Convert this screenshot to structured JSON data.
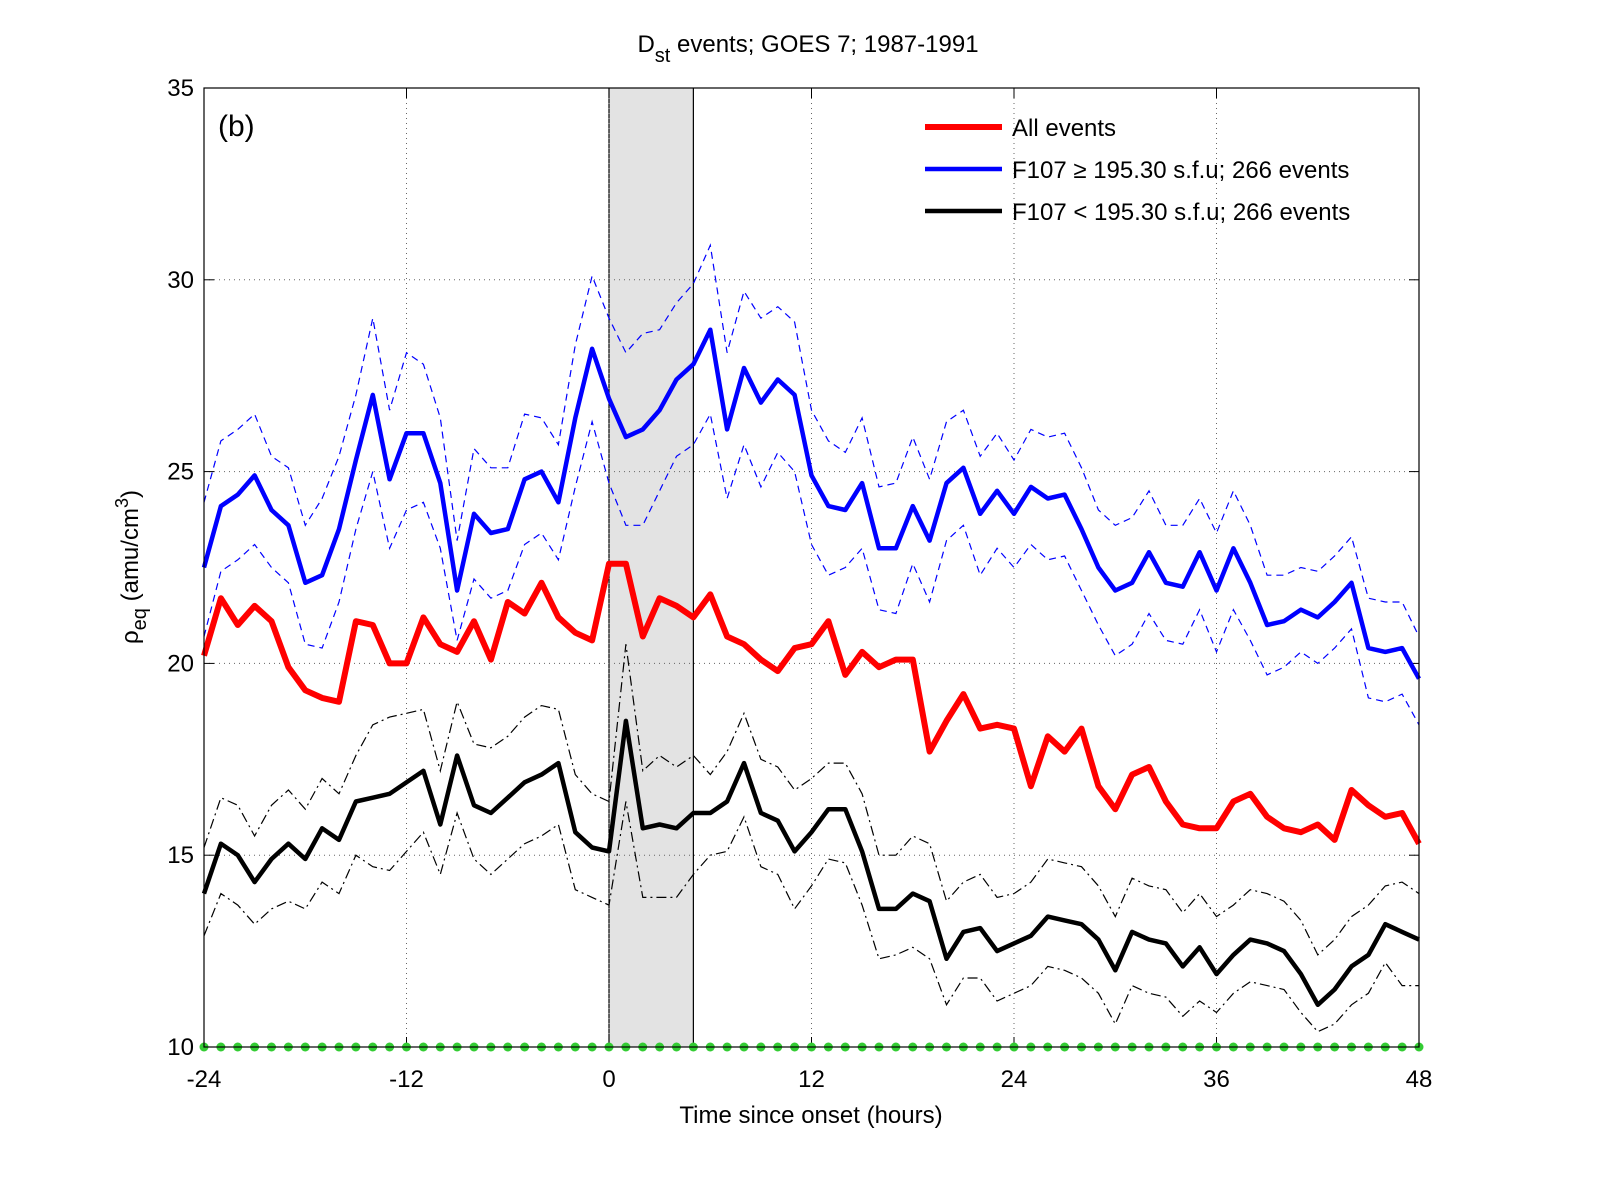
{
  "chart_data": {
    "type": "line",
    "title": [
      "D",
      "st",
      " events; GOES 7; 1987-1991"
    ],
    "xlabel": "Time since onset (hours)",
    "ylabel": [
      "ρ",
      "eq",
      " (amu/cm",
      "3",
      ")"
    ],
    "annotation": "(b)",
    "x": [
      -24,
      -23,
      -22,
      -21,
      -20,
      -19,
      -18,
      -17,
      -16,
      -15,
      -14,
      -13,
      -12,
      -11,
      -10,
      -9,
      -8,
      -7,
      -6,
      -5,
      -4,
      -3,
      -2,
      -1,
      0,
      1,
      2,
      3,
      4,
      5,
      6,
      7,
      8,
      9,
      10,
      11,
      12,
      13,
      14,
      15,
      16,
      17,
      18,
      19,
      20,
      21,
      22,
      23,
      24,
      25,
      26,
      27,
      28,
      29,
      30,
      31,
      32,
      33,
      34,
      35,
      36,
      37,
      38,
      39,
      40,
      41,
      42,
      43,
      44,
      45,
      46,
      47,
      48
    ],
    "xlim": [
      -24,
      48
    ],
    "xticks": [
      -24,
      -12,
      0,
      12,
      24,
      36,
      48
    ],
    "ylim": [
      10,
      35
    ],
    "yticks": [
      10,
      15,
      20,
      25,
      30,
      35
    ],
    "grid": true,
    "legend": "upper right",
    "shade": [
      0,
      5
    ],
    "series": [
      {
        "name": "All events",
        "color": "#ff0000",
        "values": [
          20.2,
          21.7,
          21.0,
          21.5,
          21.1,
          19.9,
          19.3,
          19.1,
          19.0,
          21.1,
          21.0,
          20.0,
          20.0,
          21.2,
          20.5,
          20.3,
          21.1,
          20.1,
          21.6,
          21.3,
          22.1,
          21.2,
          20.8,
          20.6,
          22.6,
          22.6,
          20.7,
          21.7,
          21.5,
          21.2,
          21.8,
          20.7,
          20.5,
          20.1,
          19.8,
          20.4,
          20.5,
          21.1,
          19.7,
          20.3,
          19.9,
          20.1,
          20.1,
          17.7,
          18.5,
          19.2,
          18.3,
          18.4,
          18.3,
          16.8,
          18.1,
          17.7,
          18.3,
          16.8,
          16.2,
          17.1,
          17.3,
          16.4,
          15.8,
          15.7,
          15.7,
          16.4,
          16.6,
          16.0,
          15.7,
          15.6,
          15.8,
          15.4,
          16.7,
          16.3,
          16.0,
          16.1,
          15.3
        ]
      },
      {
        "name": "F107  ≥ 195.30 s.f.u; 266 events",
        "color": "#0000ff",
        "values": [
          22.5,
          24.1,
          24.4,
          24.9,
          24.0,
          23.6,
          22.1,
          22.3,
          23.5,
          25.3,
          27.0,
          24.8,
          26.0,
          26.0,
          24.7,
          21.9,
          23.9,
          23.4,
          23.5,
          24.8,
          25.0,
          24.2,
          26.4,
          28.2,
          26.9,
          25.9,
          26.1,
          26.6,
          27.4,
          27.8,
          28.7,
          26.1,
          27.7,
          26.8,
          27.4,
          27.0,
          24.9,
          24.1,
          24.0,
          24.7,
          23.0,
          23.0,
          24.1,
          23.2,
          24.7,
          25.1,
          23.9,
          24.5,
          23.9,
          24.6,
          24.3,
          24.4,
          23.5,
          22.5,
          21.9,
          22.1,
          22.9,
          22.1,
          22.0,
          22.9,
          21.9,
          23.0,
          22.1,
          21.0,
          21.1,
          21.4,
          21.2,
          21.6,
          22.1,
          20.4,
          20.3,
          20.4,
          19.6
        ],
        "upper": [
          24.2,
          25.8,
          26.1,
          26.5,
          25.4,
          25.1,
          23.6,
          24.3,
          25.4,
          27.0,
          29.0,
          26.6,
          28.1,
          27.8,
          26.4,
          23.2,
          25.6,
          25.1,
          25.1,
          26.5,
          26.4,
          25.7,
          28.3,
          30.1,
          29.0,
          28.1,
          28.6,
          28.7,
          29.4,
          29.9,
          30.9,
          28.1,
          29.7,
          29.0,
          29.3,
          28.9,
          26.6,
          25.8,
          25.5,
          26.4,
          24.6,
          24.7,
          25.9,
          24.8,
          26.3,
          26.6,
          25.4,
          26.0,
          25.3,
          26.1,
          25.9,
          26.0,
          25.1,
          24.0,
          23.6,
          23.8,
          24.5,
          23.6,
          23.6,
          24.3,
          23.4,
          24.5,
          23.6,
          22.3,
          22.3,
          22.5,
          22.4,
          22.8,
          23.3,
          21.7,
          21.6,
          21.6,
          20.7
        ],
        "lower": [
          20.7,
          22.4,
          22.7,
          23.1,
          22.5,
          22.1,
          20.5,
          20.4,
          21.6,
          23.5,
          25.0,
          23.0,
          24.0,
          24.2,
          23.0,
          20.6,
          22.2,
          21.7,
          21.9,
          23.1,
          23.4,
          22.7,
          24.6,
          26.3,
          24.7,
          23.6,
          23.6,
          24.5,
          25.4,
          25.7,
          26.5,
          24.3,
          25.7,
          24.6,
          25.5,
          25.0,
          23.1,
          22.3,
          22.5,
          23.0,
          21.4,
          21.3,
          22.6,
          21.6,
          23.2,
          23.6,
          22.3,
          23.0,
          22.5,
          23.1,
          22.7,
          22.8,
          21.9,
          21.0,
          20.2,
          20.5,
          21.3,
          20.6,
          20.5,
          21.4,
          20.3,
          21.4,
          20.6,
          19.7,
          19.9,
          20.3,
          20.0,
          20.4,
          20.9,
          19.1,
          19.0,
          19.2,
          18.4
        ]
      },
      {
        "name": "F107 < 195.30 s.f.u; 266 events",
        "color": "#000000",
        "values": [
          14.0,
          15.3,
          15.0,
          14.3,
          14.9,
          15.3,
          14.9,
          15.7,
          15.4,
          16.4,
          16.5,
          16.6,
          16.9,
          17.2,
          15.8,
          17.6,
          16.3,
          16.1,
          16.5,
          16.9,
          17.1,
          17.4,
          15.6,
          15.2,
          15.1,
          18.5,
          15.7,
          15.8,
          15.7,
          16.1,
          16.1,
          16.4,
          17.4,
          16.1,
          15.9,
          15.1,
          15.6,
          16.2,
          16.2,
          15.1,
          13.6,
          13.6,
          14.0,
          13.8,
          12.3,
          13.0,
          13.1,
          12.5,
          12.7,
          12.9,
          13.4,
          13.3,
          13.2,
          12.8,
          12.0,
          13.0,
          12.8,
          12.7,
          12.1,
          12.6,
          11.9,
          12.4,
          12.8,
          12.7,
          12.5,
          11.9,
          11.1,
          11.5,
          12.1,
          12.4,
          13.2,
          13.0,
          12.8
        ],
        "upper": [
          15.2,
          16.5,
          16.3,
          15.5,
          16.3,
          16.7,
          16.2,
          17.0,
          16.6,
          17.6,
          18.4,
          18.6,
          18.7,
          18.8,
          17.2,
          19.0,
          17.9,
          17.8,
          18.1,
          18.6,
          18.9,
          18.8,
          17.1,
          16.6,
          16.4,
          20.5,
          17.2,
          17.6,
          17.3,
          17.6,
          17.1,
          17.7,
          18.7,
          17.5,
          17.3,
          16.7,
          17.0,
          17.4,
          17.4,
          16.6,
          15.0,
          15.0,
          15.5,
          15.3,
          13.8,
          14.3,
          14.5,
          13.9,
          14.0,
          14.3,
          14.9,
          14.8,
          14.7,
          14.2,
          13.4,
          14.4,
          14.2,
          14.1,
          13.5,
          14.0,
          13.4,
          13.7,
          14.1,
          14.0,
          13.8,
          13.3,
          12.4,
          12.8,
          13.4,
          13.7,
          14.2,
          14.3,
          14.0
        ],
        "lower": [
          12.9,
          14.0,
          13.7,
          13.2,
          13.6,
          13.8,
          13.6,
          14.3,
          14.0,
          15.0,
          14.7,
          14.6,
          15.1,
          15.6,
          14.5,
          16.1,
          14.9,
          14.5,
          14.9,
          15.3,
          15.5,
          15.8,
          14.1,
          13.9,
          13.7,
          16.4,
          13.9,
          13.9,
          13.9,
          14.5,
          15.0,
          15.1,
          16.0,
          14.7,
          14.5,
          13.6,
          14.2,
          14.9,
          14.8,
          13.7,
          12.3,
          12.4,
          12.6,
          12.3,
          11.1,
          11.8,
          11.8,
          11.2,
          11.4,
          11.6,
          12.1,
          12.0,
          11.8,
          11.4,
          10.6,
          11.6,
          11.4,
          11.3,
          10.8,
          11.2,
          10.9,
          11.4,
          11.7,
          11.6,
          11.5,
          10.9,
          10.4,
          10.6,
          11.1,
          11.4,
          12.2,
          11.6,
          11.6
        ]
      }
    ],
    "baseline_points": {
      "color": "#33cc33",
      "values": [
        10,
        10,
        10,
        10,
        10,
        10,
        10,
        10,
        10,
        10,
        10,
        10,
        10,
        10,
        10,
        10,
        10,
        10,
        10,
        10,
        10,
        10,
        10,
        10,
        10,
        10,
        10,
        10,
        10,
        10,
        10,
        10,
        10,
        10,
        10,
        10,
        10,
        10,
        10,
        10,
        10,
        10,
        10,
        10,
        10,
        10,
        10,
        10,
        10,
        10,
        10,
        10,
        10,
        10,
        10,
        10,
        10,
        10,
        10,
        10,
        10,
        10,
        10,
        10,
        10,
        10,
        10,
        10,
        10,
        10,
        10,
        10,
        10
      ]
    }
  }
}
